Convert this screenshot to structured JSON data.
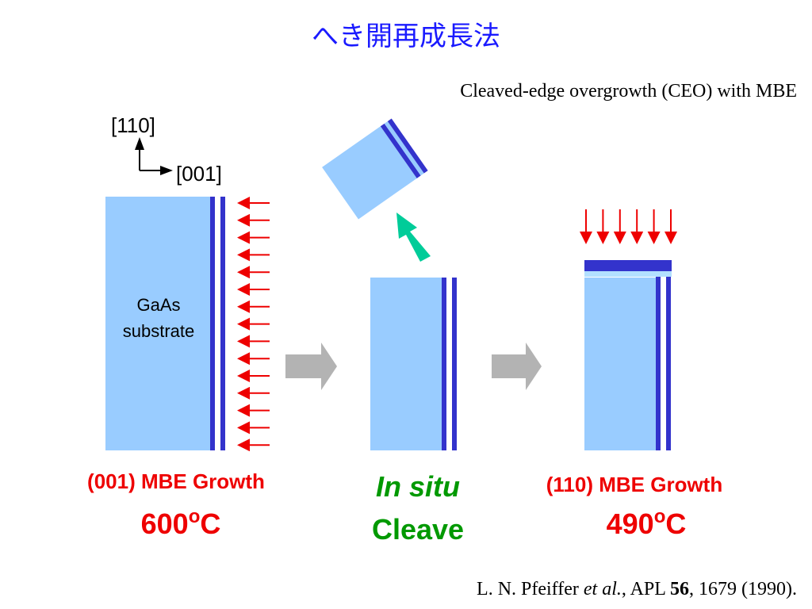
{
  "header": {
    "title": "へき開再成長法",
    "subtitle": "Cleaved-edge overgrowth (CEO) with MBE"
  },
  "axes": {
    "vertical": "[110]",
    "horizontal": "[001]"
  },
  "substrate": {
    "line1": "GaAs",
    "line2": "substrate"
  },
  "steps": [
    {
      "label": "(001) MBE Growth",
      "temperature": {
        "value": "600",
        "sup": "o",
        "unit": "C"
      }
    },
    {
      "label": "In situ",
      "label2": "Cleave"
    },
    {
      "label": "(110) MBE Growth",
      "temperature": {
        "value": "490",
        "sup": "o",
        "unit": "C"
      }
    }
  ],
  "citation": {
    "authors": "L. N. Pfeiffer ",
    "etal": "et al.",
    "journal": ", APL ",
    "volume": "56",
    "rest": ", 1679 (1990)."
  }
}
